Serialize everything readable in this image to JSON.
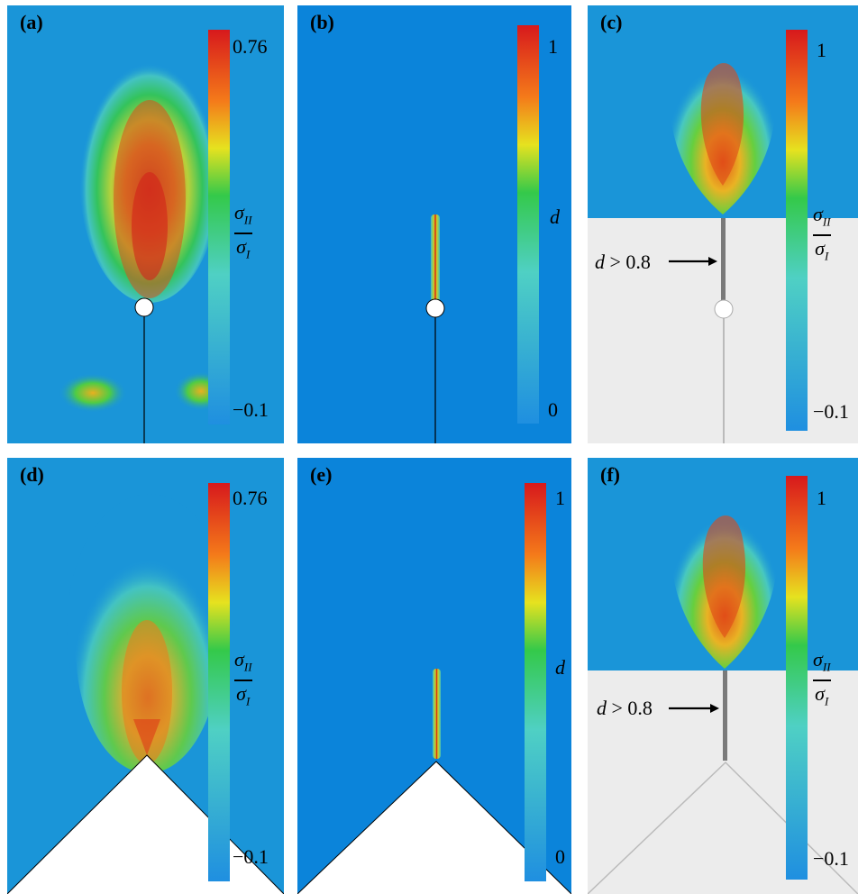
{
  "panels": {
    "a": {
      "label": "(a)",
      "cbar_max": "0.76",
      "cbar_min": "−0.1",
      "quantity_num": "σ",
      "quantity_num_sub": "II",
      "quantity_den": "σ",
      "quantity_den_sub": "I"
    },
    "b": {
      "label": "(b)",
      "cbar_max": "1",
      "cbar_min": "0",
      "quantity": "d"
    },
    "c": {
      "label": "(c)",
      "cbar_max": "1",
      "cbar_min": "−0.1",
      "quantity_num": "σ",
      "quantity_num_sub": "II",
      "quantity_den": "σ",
      "quantity_den_sub": "I",
      "annotation_var": "d",
      "annotation_rest": " > 0.8"
    },
    "d": {
      "label": "(d)",
      "cbar_max": "0.76",
      "cbar_min": "−0.1",
      "quantity_num": "σ",
      "quantity_num_sub": "II",
      "quantity_den": "σ",
      "quantity_den_sub": "I"
    },
    "e": {
      "label": "(e)",
      "cbar_max": "1",
      "cbar_min": "0",
      "quantity": "d"
    },
    "f": {
      "label": "(f)",
      "cbar_max": "1",
      "cbar_min": "−0.1",
      "quantity_num": "σ",
      "quantity_num_sub": "II",
      "quantity_den": "σ",
      "quantity_den_sub": "I",
      "annotation_var": "d",
      "annotation_rest": " > 0.8"
    }
  },
  "colors": {
    "background_field": "#1a95d8",
    "damage_field": "#0b84da",
    "masked_region": "#ececec",
    "colormap": [
      "#d7191c",
      "#f4a11a",
      "#e6e21f",
      "#34c94a",
      "#4fd0c4",
      "#1f8fe0"
    ]
  }
}
